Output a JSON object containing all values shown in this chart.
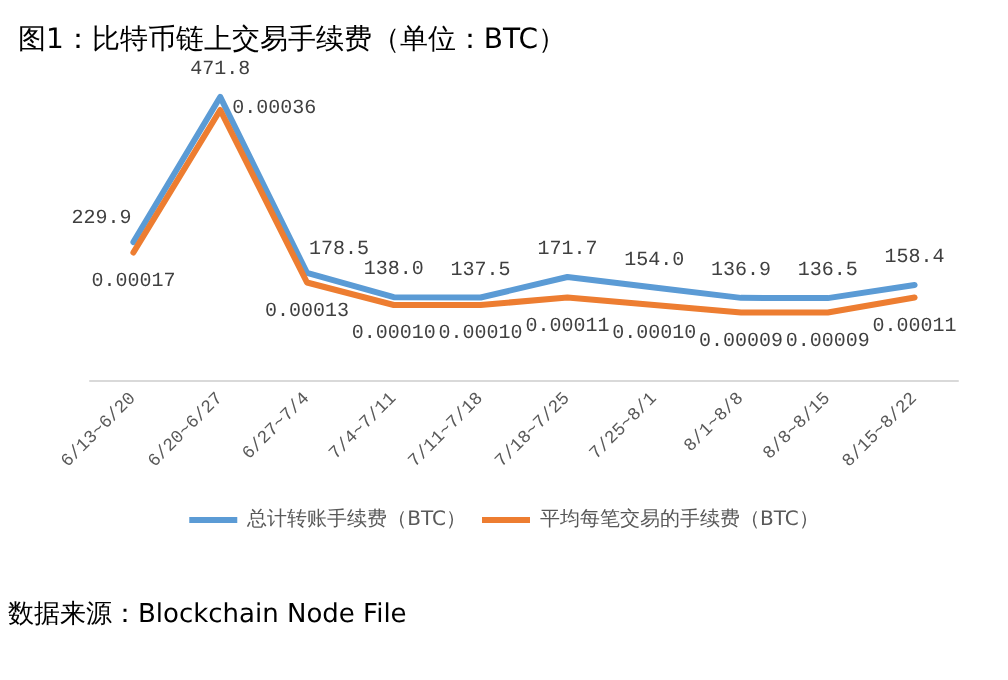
{
  "chart_data": {
    "type": "line",
    "title": "图1：比特币链上交易手续费（单位：BTC）",
    "categories": [
      "6/13~6/20",
      "6/20~6/27",
      "6/27~7/4",
      "7/4~7/11",
      "7/11~7/18",
      "7/18~7/25",
      "7/25~8/1",
      "8/1~8/8",
      "8/8~8/15",
      "8/15~8/22"
    ],
    "series": [
      {
        "name": "总计转账手续费（BTC）",
        "color": "#5b9bd5",
        "values": [
          229.9,
          471.8,
          178.5,
          138.0,
          137.5,
          171.7,
          154.0,
          136.9,
          136.5,
          158.4
        ],
        "value_labels": [
          "229.9",
          "471.8",
          "178.5",
          "138.0",
          "137.5",
          "171.7",
          "154.0",
          "136.9",
          "136.5",
          "158.4"
        ]
      },
      {
        "name": "平均每笔交易的手续费（BTC）",
        "color": "#ed7d31",
        "axis": "y2",
        "values": [
          0.00017,
          0.00036,
          0.00013,
          0.0001,
          0.0001,
          0.00011,
          0.0001,
          9e-05,
          9e-05,
          0.00011
        ],
        "value_labels": [
          "0.00017",
          "0.00036",
          "0.00013",
          "0.00010",
          "0.00010",
          "0.00011",
          "0.00010",
          "0.00009",
          "0.00009",
          "0.00011"
        ]
      }
    ],
    "tick_labels": "x",
    "grid": false,
    "legend": "bottom",
    "marker": "none",
    "line_style": "solid",
    "annotations": [
      "数据来源：Blockchain Node File"
    ]
  }
}
